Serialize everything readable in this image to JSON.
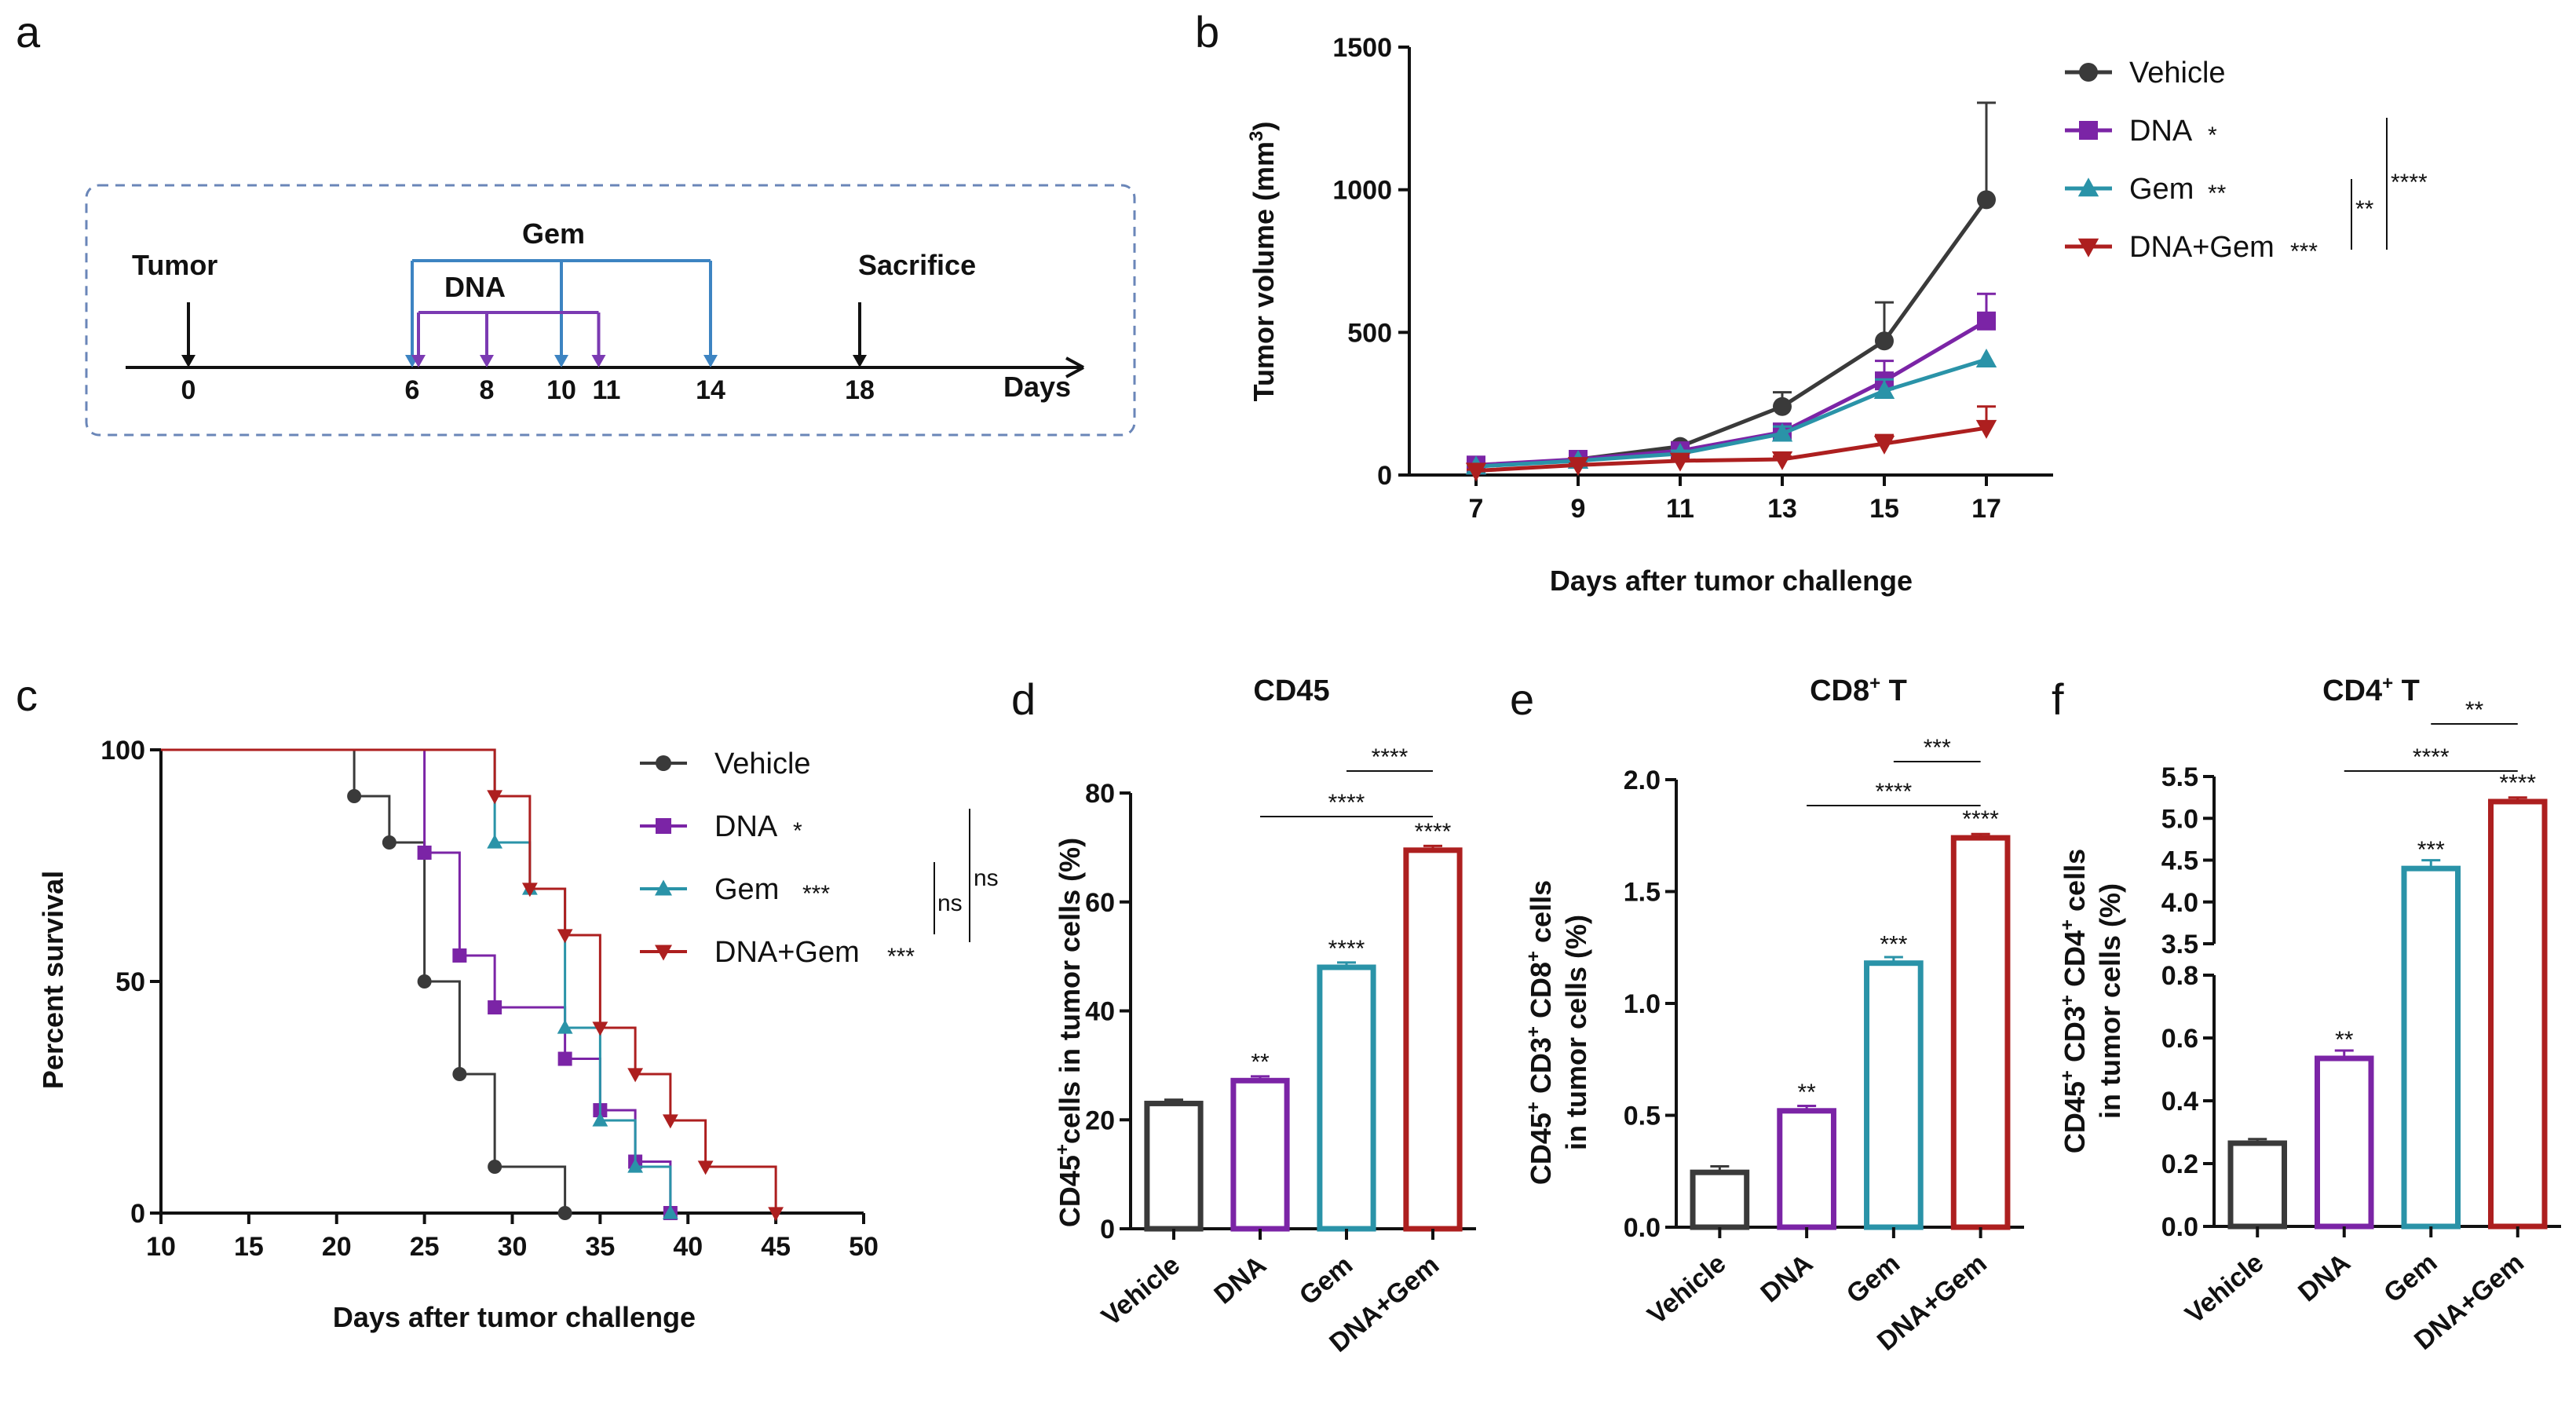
{
  "colors": {
    "Vehicle": "#3a3a3a",
    "DNA": "#7b24a6",
    "Gem": "#2a93a8",
    "DNA+Gem": "#ad1f1f",
    "schedule_gem": "#3d84c2",
    "schedule_dna": "#7b3ab2",
    "frame": "#6a86b8"
  },
  "panel_a": {
    "label": "a",
    "tumor_label": "Tumor",
    "sacrifice_label": "Sacrifice",
    "gem_label": "Gem",
    "dna_label": "DNA",
    "days_label": "Days",
    "ticks": [
      "0",
      "6",
      "8",
      "10",
      "11",
      "14",
      "18"
    ],
    "tumor_day": 0,
    "gem_days": [
      6,
      10,
      14
    ],
    "dna_days": [
      6,
      8,
      11
    ],
    "sacrifice_day": 18
  },
  "chart_data": [
    {
      "id": "b",
      "label": "b",
      "type": "line",
      "xlabel": "Days after tumor challenge",
      "ylabel": "Tumor volume (mm3)",
      "x": [
        7,
        9,
        11,
        13,
        15,
        17
      ],
      "xticks": [
        "7",
        "9",
        "11",
        "13",
        "15",
        "17"
      ],
      "ylim": [
        0,
        1500
      ],
      "yticks": [
        "0",
        "500",
        "1000",
        "1500"
      ],
      "series": [
        {
          "name": "Vehicle",
          "legend_stars": "",
          "values": [
            30,
            55,
            100,
            240,
            470,
            965
          ],
          "errors": [
            8,
            10,
            15,
            50,
            135,
            340
          ]
        },
        {
          "name": "DNA",
          "legend_stars": "*",
          "values": [
            35,
            55,
            85,
            150,
            330,
            540
          ],
          "errors": [
            6,
            8,
            12,
            30,
            70,
            95
          ]
        },
        {
          "name": "Gem",
          "legend_stars": "**",
          "values": [
            30,
            50,
            75,
            145,
            295,
            405
          ],
          "errors": [
            5,
            8,
            10,
            25,
            40,
            0
          ]
        },
        {
          "name": "DNA+Gem",
          "legend_stars": "***",
          "values": [
            15,
            35,
            50,
            55,
            110,
            165
          ],
          "errors": [
            4,
            5,
            8,
            10,
            30,
            75
          ]
        }
      ],
      "brackets": [
        {
          "text": "**"
        },
        {
          "text": "****"
        }
      ]
    },
    {
      "id": "c",
      "label": "c",
      "type": "line",
      "subtype": "kaplan-meier",
      "xlabel": "Days after tumor challenge",
      "ylabel": "Percent survival",
      "xlim": [
        10,
        50
      ],
      "xticks": [
        "10",
        "15",
        "20",
        "25",
        "30",
        "35",
        "40",
        "45",
        "50"
      ],
      "ylim": [
        0,
        100
      ],
      "yticks": [
        "0",
        "50",
        "100"
      ],
      "series": [
        {
          "name": "Vehicle",
          "legend_stars": "",
          "marker": "circle",
          "steps": [
            [
              10,
              100
            ],
            [
              21,
              90
            ],
            [
              23,
              80
            ],
            [
              25,
              50
            ],
            [
              27,
              30
            ],
            [
              29,
              10
            ],
            [
              33,
              0
            ]
          ]
        },
        {
          "name": "DNA",
          "legend_stars": "*",
          "marker": "square",
          "steps": [
            [
              10,
              100
            ],
            [
              25,
              77.8
            ],
            [
              27,
              55.6
            ],
            [
              29,
              44.4
            ],
            [
              33,
              33.3
            ],
            [
              35,
              22.2
            ],
            [
              37,
              11.1
            ],
            [
              39,
              0
            ]
          ]
        },
        {
          "name": "Gem",
          "legend_stars": "***",
          "marker": "triangle",
          "steps": [
            [
              10,
              100
            ],
            [
              29,
              80
            ],
            [
              31,
              70
            ],
            [
              33,
              40
            ],
            [
              35,
              20
            ],
            [
              37,
              10
            ],
            [
              39,
              0
            ]
          ]
        },
        {
          "name": "DNA+Gem",
          "legend_stars": "***",
          "marker": "triangle-down",
          "steps": [
            [
              10,
              100
            ],
            [
              29,
              90
            ],
            [
              31,
              70
            ],
            [
              33,
              60
            ],
            [
              35,
              40
            ],
            [
              37,
              30
            ],
            [
              39,
              20
            ],
            [
              41,
              10
            ],
            [
              45,
              0
            ]
          ]
        }
      ],
      "brackets": [
        {
          "text": "ns"
        },
        {
          "text": "ns"
        }
      ]
    },
    {
      "id": "d",
      "label": "d",
      "type": "bar",
      "title": "CD45",
      "ylabel": "CD45+cells in tumor cells (%)",
      "categories": [
        "Vehicle",
        "DNA",
        "Gem",
        "DNA+Gem"
      ],
      "values": [
        23,
        27.2,
        48,
        69.5
      ],
      "errors": [
        0.4,
        0.5,
        0.6,
        0.5
      ],
      "stars": [
        "",
        "**",
        "****",
        "****"
      ],
      "ylim": [
        0,
        80
      ],
      "yticks": [
        "0",
        "20",
        "40",
        "60",
        "80"
      ],
      "comparisons": [
        {
          "from": 1,
          "to": 3,
          "text": "****"
        },
        {
          "from": 2,
          "to": 3,
          "text": "****"
        }
      ]
    },
    {
      "id": "e",
      "label": "e",
      "type": "bar",
      "title": "CD8+ T",
      "ylabel": "CD45+ CD3+ CD8+ cells in tumor cells (%)",
      "categories": [
        "Vehicle",
        "DNA",
        "Gem",
        "DNA+Gem"
      ],
      "values": [
        0.245,
        0.52,
        1.18,
        1.74
      ],
      "errors": [
        0.02,
        0.015,
        0.02,
        0.01
      ],
      "stars": [
        "",
        "**",
        "***",
        "****"
      ],
      "ylim": [
        0,
        2.0
      ],
      "yticks": [
        "0.0",
        "0.5",
        "1.0",
        "1.5",
        "2.0"
      ],
      "comparisons": [
        {
          "from": 1,
          "to": 3,
          "text": "****"
        },
        {
          "from": 2,
          "to": 3,
          "text": "***"
        }
      ]
    },
    {
      "id": "f",
      "label": "f",
      "type": "bar",
      "title": "CD4+ T",
      "ylabel": "CD45+ CD3+ CD4+ cells in tumor cells (%)",
      "categories": [
        "Vehicle",
        "DNA",
        "Gem",
        "DNA+Gem"
      ],
      "values": [
        0.265,
        0.535,
        4.4,
        5.2
      ],
      "errors": [
        0.008,
        0.02,
        0.08,
        0.03
      ],
      "stars": [
        "",
        "**",
        "***",
        "****"
      ],
      "axis_break": {
        "lower": [
          0,
          0.8
        ],
        "upper": [
          3.5,
          5.5
        ]
      },
      "yticks_lower": [
        "0.0",
        "0.2",
        "0.4",
        "0.6",
        "0.8"
      ],
      "yticks_upper": [
        "3.5",
        "4.0",
        "4.5",
        "5.0",
        "5.5"
      ],
      "comparisons": [
        {
          "from": 1,
          "to": 3,
          "text": "****"
        },
        {
          "from": 2,
          "to": 3,
          "text": "**"
        }
      ]
    }
  ]
}
